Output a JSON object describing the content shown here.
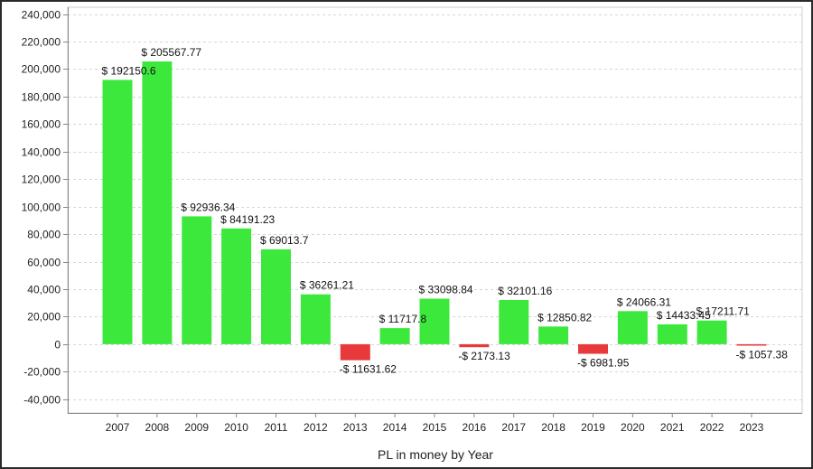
{
  "chart_data": {
    "type": "bar",
    "title": "",
    "xlabel": "PL in money by Year",
    "ylabel": "",
    "ylim": [
      -50000,
      245000
    ],
    "y_ticks": [
      -40000,
      -20000,
      0,
      20000,
      40000,
      60000,
      80000,
      100000,
      120000,
      140000,
      160000,
      180000,
      200000,
      220000,
      240000
    ],
    "y_tick_labels": [
      "-40,000",
      "-20,000",
      "0",
      "20,000",
      "40,000",
      "60,000",
      "80,000",
      "100,000",
      "120,000",
      "140,000",
      "160,000",
      "180,000",
      "200,000",
      "220,000",
      "240,000"
    ],
    "categories": [
      "2007",
      "2008",
      "2009",
      "2010",
      "2011",
      "2012",
      "2013",
      "2014",
      "2015",
      "2016",
      "2017",
      "2018",
      "2019",
      "2020",
      "2021",
      "2022",
      "2023"
    ],
    "values": [
      192150.6,
      205567.77,
      92936.34,
      84191.23,
      69013.7,
      36261.21,
      -11631.62,
      11717.8,
      33098.84,
      -2173.13,
      32101.16,
      12850.82,
      -6981.95,
      24066.31,
      14433.45,
      17211.71,
      -1057.38
    ],
    "data_labels": [
      "$ 192150.6",
      "$ 205567.77",
      "$ 92936.34",
      "$ 84191.23",
      "$ 69013.7",
      "$ 36261.21",
      "-$ 11631.62",
      "$ 11717.8",
      "$ 33098.84",
      "-$ 2173.13",
      "$ 32101.16",
      "$ 12850.82",
      "-$ 6981.95",
      "$ 24066.31",
      "$ 14433.45",
      "$ 17211.71",
      "-$ 1057.38"
    ],
    "grid": true,
    "colors": {
      "positive": "#3de83d",
      "negative": "#e83a3a",
      "grid": "#d6d6d6",
      "axis": "#888888"
    }
  }
}
